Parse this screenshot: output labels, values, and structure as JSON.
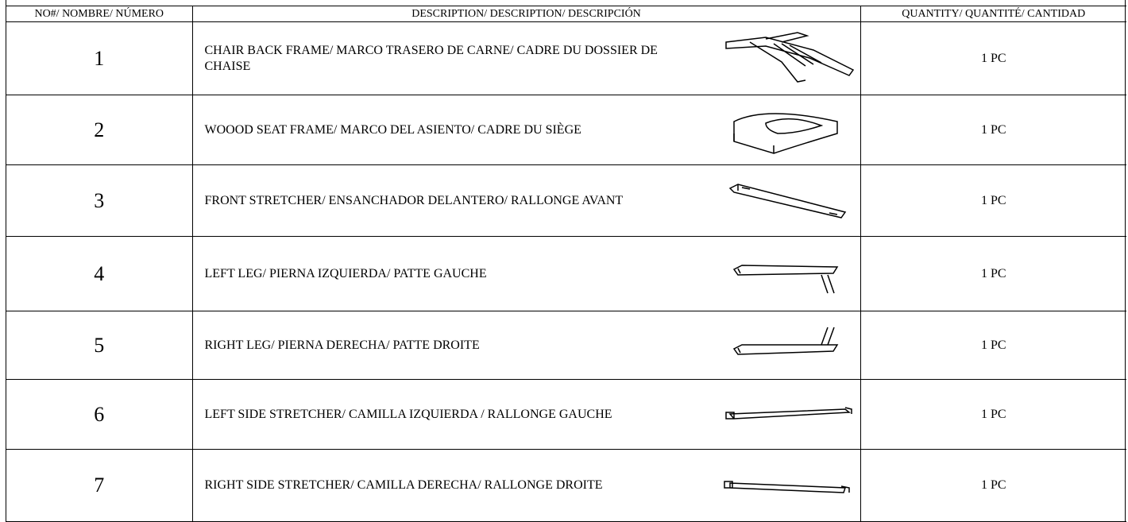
{
  "table": {
    "header": [
      "NO#/ NOMBRE/ NÚMERO",
      "DESCRIPTION/ DESCRIPTION/ DESCRIPCIÓN",
      "QUANTITY/ QUANTITÉ/ CANTIDAD"
    ],
    "rows": [
      [
        "1",
        "CHAIR BACK FRAME/ MARCO TRASERO DE CARNE/ CADRE DU DOSSIER DE CHAISE",
        "1 PC"
      ],
      [
        "2",
        "WOOOD SEAT FRAME/ MARCO DEL ASIENTO/ CADRE DU SIÈGE",
        "1 PC"
      ],
      [
        "3",
        "FRONT STRETCHER/ ENSANCHADOR DELANTERO/ RALLONGE AVANT",
        "1 PC"
      ],
      [
        "4",
        "LEFT LEG/ PIERNA IZQUIERDA/ PATTE GAUCHE",
        "1 PC"
      ],
      [
        "5",
        "RIGHT LEG/ PIERNA DERECHA/ PATTE DROITE",
        "1 PC"
      ],
      [
        "6",
        "LEFT SIDE STRETCHER/ CAMILLA IZQUIERDA / RALLONGE GAUCHE",
        "1 PC"
      ],
      [
        "7",
        "RIGHT SIDE STRETCHER/ CAMILLA DERECHA/ RALLONGE DROITE",
        "1 PC"
      ]
    ]
  }
}
